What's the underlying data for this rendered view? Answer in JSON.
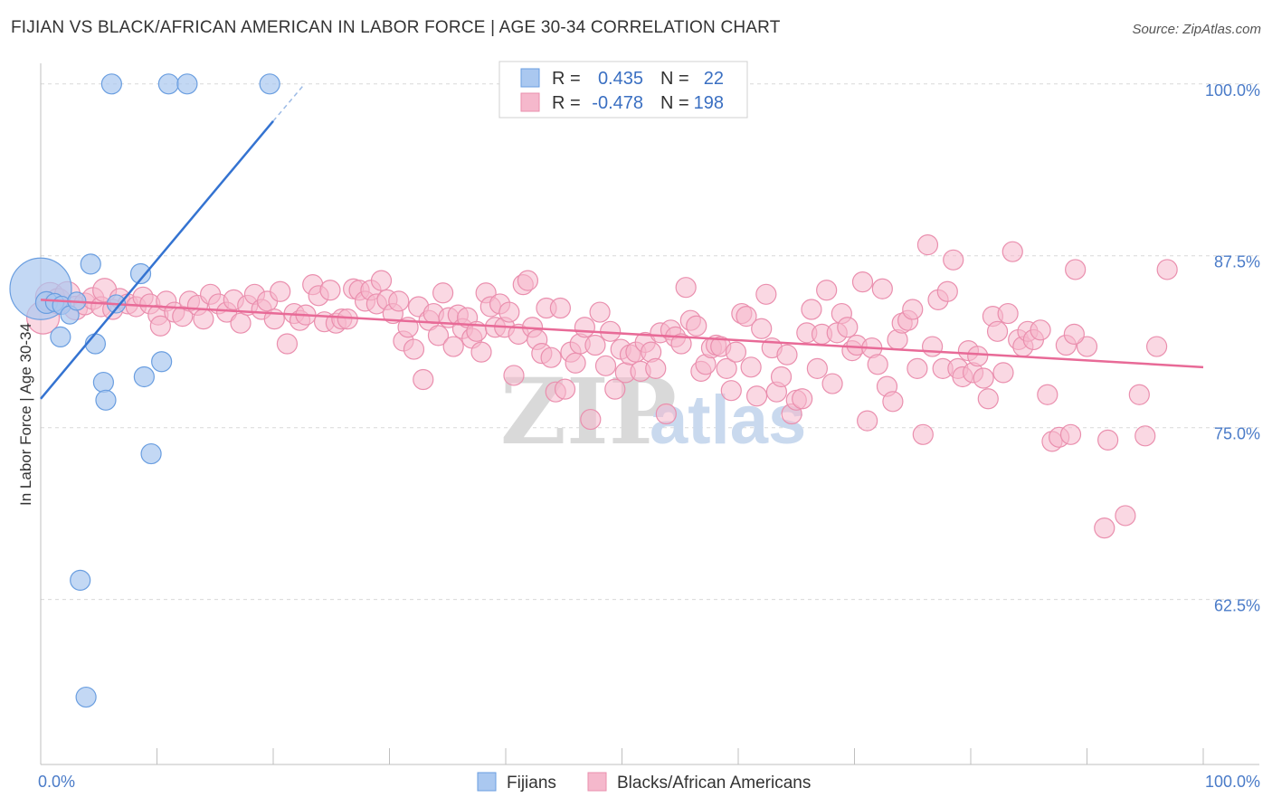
{
  "title": "FIJIAN VS BLACK/AFRICAN AMERICAN IN LABOR FORCE | AGE 30-34 CORRELATION CHART",
  "source": "Source: ZipAtlas.com",
  "watermark": {
    "zip": "ZIP",
    "atlas": "atlas"
  },
  "colors": {
    "fijian_fill": "#aac8f0",
    "fijian_stroke": "#6a9ee0",
    "fijian_line": "#3473d1",
    "black_fill": "#f5b8cc",
    "black_stroke": "#ea8fae",
    "black_line": "#e86a97",
    "grid": "#d9d9d9",
    "tick_text": "#4a7bc8"
  },
  "legend": {
    "rows": [
      {
        "r_label": "R =",
        "r_value": "0.435",
        "n_label": "N =",
        "n_value": "22"
      },
      {
        "r_label": "R =",
        "r_value": "-0.478",
        "n_label": "N =",
        "n_value": "198"
      }
    ]
  },
  "bottom_legend": [
    "Fijians",
    "Blacks/African Americans"
  ],
  "chart_data": {
    "type": "scatter",
    "title": "FIJIAN VS BLACK/AFRICAN AMERICAN IN LABOR FORCE | AGE 30-34 CORRELATION CHART",
    "xlabel": "",
    "ylabel": "In Labor Force | Age 30-34",
    "xlim": [
      0,
      100
    ],
    "ylim": [
      50.5,
      101.5
    ],
    "x_tick_labels": [
      "0.0%",
      "100.0%"
    ],
    "y_ticks": [
      100.0,
      87.5,
      75.0,
      62.5
    ],
    "y_tick_labels": [
      "100.0%",
      "87.5%",
      "75.0%",
      "62.5%"
    ],
    "grid": true,
    "legend_position": "top-center",
    "series": [
      {
        "name": "Fijians",
        "r": 0.435,
        "n": 22,
        "trend": {
          "x0": 0.0,
          "y0": 77.1,
          "x1": 20.0,
          "y1": 97.3,
          "dash_to_x": 22.7,
          "dash_to_y": 100.0
        },
        "points": [
          [
            0.0,
            85.1,
            34
          ],
          [
            0.5,
            84.1,
            12
          ],
          [
            1.2,
            84.1,
            10
          ],
          [
            1.8,
            83.9,
            10
          ],
          [
            2.5,
            83.2,
            10
          ],
          [
            1.7,
            81.6,
            11
          ],
          [
            4.7,
            81.1,
            11
          ],
          [
            4.3,
            86.9,
            11
          ],
          [
            8.6,
            86.2,
            11
          ],
          [
            5.4,
            78.3,
            11
          ],
          [
            5.6,
            77.0,
            11
          ],
          [
            8.9,
            78.7,
            11
          ],
          [
            10.4,
            79.8,
            11
          ],
          [
            9.5,
            73.1,
            11
          ],
          [
            3.4,
            63.9,
            11
          ],
          [
            3.9,
            55.4,
            11
          ],
          [
            6.1,
            100.0,
            11
          ],
          [
            11.0,
            100.0,
            11
          ],
          [
            12.6,
            100.0,
            11
          ],
          [
            19.7,
            100.0,
            11
          ],
          [
            3.1,
            84.2,
            10
          ],
          [
            6.5,
            84.0,
            10
          ]
        ]
      },
      {
        "name": "Blacks/African Americans",
        "r": -0.478,
        "n": 198,
        "trend": {
          "x0": 0.0,
          "y0": 84.3,
          "x1": 100.0,
          "y1": 79.4
        },
        "points": [
          [
            0.2,
            83.0,
            18
          ],
          [
            0.8,
            84.5,
            16
          ],
          [
            1.5,
            84.2,
            14
          ],
          [
            2.3,
            84.7,
            14
          ],
          [
            3.0,
            83.7,
            13
          ],
          [
            3.8,
            84.0,
            12
          ],
          [
            4.5,
            84.4,
            12
          ],
          [
            5.2,
            83.8,
            11
          ],
          [
            5.5,
            85.0,
            13
          ],
          [
            6.2,
            83.6,
            11
          ],
          [
            6.8,
            84.4,
            11
          ],
          [
            7.5,
            84.0,
            11
          ],
          [
            8.2,
            83.8,
            11
          ],
          [
            8.8,
            84.5,
            11
          ],
          [
            9.4,
            84.0,
            11
          ],
          [
            10.1,
            83.2,
            11
          ],
          [
            10.3,
            82.4,
            11
          ],
          [
            10.8,
            84.2,
            11
          ],
          [
            11.5,
            83.4,
            11
          ],
          [
            12.2,
            83.1,
            11
          ],
          [
            12.8,
            84.2,
            11
          ],
          [
            13.5,
            83.9,
            11
          ],
          [
            14.0,
            82.9,
            11
          ],
          [
            14.6,
            84.7,
            11
          ],
          [
            15.3,
            84.0,
            11
          ],
          [
            16.0,
            83.4,
            11
          ],
          [
            16.6,
            84.3,
            11
          ],
          [
            17.2,
            82.6,
            11
          ],
          [
            17.8,
            83.9,
            11
          ],
          [
            18.4,
            84.7,
            11
          ],
          [
            19.0,
            83.6,
            11
          ],
          [
            19.5,
            84.2,
            11
          ],
          [
            20.1,
            82.9,
            11
          ],
          [
            20.6,
            84.9,
            11
          ],
          [
            21.2,
            81.1,
            11
          ],
          [
            21.8,
            83.3,
            11
          ],
          [
            22.3,
            82.8,
            11
          ],
          [
            22.8,
            83.2,
            11
          ],
          [
            23.4,
            85.4,
            11
          ],
          [
            23.9,
            84.6,
            11
          ],
          [
            24.4,
            82.7,
            11
          ],
          [
            24.9,
            85.0,
            11
          ],
          [
            25.4,
            82.6,
            11
          ],
          [
            25.9,
            82.9,
            11
          ],
          [
            26.4,
            82.9,
            11
          ],
          [
            26.9,
            85.1,
            11
          ],
          [
            27.4,
            85.0,
            11
          ],
          [
            27.9,
            84.2,
            11
          ],
          [
            28.4,
            85.0,
            11
          ],
          [
            28.9,
            84.0,
            11
          ],
          [
            29.3,
            85.7,
            11
          ],
          [
            29.8,
            84.3,
            11
          ],
          [
            30.3,
            83.3,
            11
          ],
          [
            30.8,
            84.2,
            11
          ],
          [
            31.2,
            81.3,
            11
          ],
          [
            31.6,
            82.3,
            11
          ],
          [
            32.1,
            80.7,
            11
          ],
          [
            32.5,
            83.8,
            11
          ],
          [
            32.9,
            78.5,
            11
          ],
          [
            33.4,
            82.8,
            11
          ],
          [
            33.8,
            83.3,
            11
          ],
          [
            34.2,
            81.7,
            11
          ],
          [
            34.6,
            84.8,
            11
          ],
          [
            35.1,
            83.0,
            11
          ],
          [
            35.5,
            80.9,
            11
          ],
          [
            35.9,
            83.2,
            11
          ],
          [
            36.3,
            82.2,
            11
          ],
          [
            36.7,
            83.0,
            11
          ],
          [
            37.1,
            81.5,
            11
          ],
          [
            37.5,
            82.0,
            11
          ],
          [
            37.9,
            80.5,
            11
          ],
          [
            38.3,
            84.8,
            11
          ],
          [
            38.7,
            83.8,
            11
          ],
          [
            39.1,
            82.3,
            11
          ],
          [
            39.5,
            84.0,
            11
          ],
          [
            39.9,
            82.3,
            11
          ],
          [
            40.3,
            83.4,
            11
          ],
          [
            40.7,
            78.8,
            11
          ],
          [
            41.1,
            81.8,
            11
          ],
          [
            41.5,
            85.4,
            11
          ],
          [
            41.9,
            85.7,
            11
          ],
          [
            42.3,
            82.3,
            11
          ],
          [
            42.7,
            81.4,
            11
          ],
          [
            43.1,
            80.4,
            11
          ],
          [
            43.5,
            83.7,
            11
          ],
          [
            43.9,
            80.1,
            11
          ],
          [
            44.3,
            77.6,
            11
          ],
          [
            44.7,
            83.7,
            11
          ],
          [
            45.1,
            77.8,
            11
          ],
          [
            45.6,
            80.5,
            11
          ],
          [
            46.0,
            79.7,
            11
          ],
          [
            46.4,
            81.1,
            11
          ],
          [
            46.8,
            82.3,
            11
          ],
          [
            47.3,
            75.6,
            11
          ],
          [
            47.7,
            81.0,
            11
          ],
          [
            48.1,
            83.4,
            11
          ],
          [
            48.6,
            79.5,
            11
          ],
          [
            49.0,
            82.0,
            11
          ],
          [
            49.4,
            77.8,
            11
          ],
          [
            49.9,
            80.7,
            11
          ],
          [
            50.3,
            79.0,
            11
          ],
          [
            50.7,
            80.3,
            11
          ],
          [
            51.2,
            80.5,
            11
          ],
          [
            51.6,
            79.1,
            11
          ],
          [
            52.0,
            81.2,
            11
          ],
          [
            52.5,
            80.5,
            11
          ],
          [
            52.9,
            79.3,
            11
          ],
          [
            53.3,
            81.9,
            11
          ],
          [
            53.8,
            76.0,
            11
          ],
          [
            54.2,
            82.1,
            11
          ],
          [
            54.6,
            81.6,
            11
          ],
          [
            55.1,
            81.1,
            11
          ],
          [
            55.5,
            85.2,
            11
          ],
          [
            55.9,
            82.8,
            11
          ],
          [
            56.4,
            82.4,
            11
          ],
          [
            56.8,
            79.1,
            11
          ],
          [
            57.2,
            79.6,
            11
          ],
          [
            57.7,
            80.8,
            11
          ],
          [
            58.1,
            81.0,
            11
          ],
          [
            58.5,
            80.9,
            11
          ],
          [
            59.0,
            79.3,
            11
          ],
          [
            59.4,
            77.7,
            11
          ],
          [
            59.8,
            80.5,
            11
          ],
          [
            60.3,
            83.3,
            11
          ],
          [
            60.7,
            83.1,
            11
          ],
          [
            61.1,
            79.4,
            11
          ],
          [
            61.6,
            77.3,
            11
          ],
          [
            62.0,
            82.2,
            11
          ],
          [
            62.4,
            84.7,
            11
          ],
          [
            62.9,
            80.8,
            11
          ],
          [
            63.3,
            77.6,
            11
          ],
          [
            63.7,
            78.7,
            11
          ],
          [
            64.2,
            80.3,
            11
          ],
          [
            64.6,
            76.0,
            11
          ],
          [
            65.0,
            77.0,
            11
          ],
          [
            65.5,
            77.1,
            11
          ],
          [
            65.9,
            81.9,
            11
          ],
          [
            66.3,
            83.6,
            11
          ],
          [
            66.8,
            79.3,
            11
          ],
          [
            67.2,
            81.8,
            11
          ],
          [
            67.6,
            85.0,
            11
          ],
          [
            68.1,
            78.2,
            11
          ],
          [
            68.5,
            81.9,
            11
          ],
          [
            68.9,
            83.3,
            11
          ],
          [
            69.4,
            82.3,
            11
          ],
          [
            69.8,
            80.6,
            11
          ],
          [
            70.2,
            81.0,
            11
          ],
          [
            70.7,
            85.6,
            11
          ],
          [
            71.1,
            75.5,
            11
          ],
          [
            71.5,
            80.8,
            11
          ],
          [
            72.0,
            79.6,
            11
          ],
          [
            72.4,
            85.1,
            11
          ],
          [
            72.8,
            78.0,
            11
          ],
          [
            73.3,
            76.9,
            11
          ],
          [
            73.7,
            81.4,
            11
          ],
          [
            74.1,
            82.6,
            11
          ],
          [
            74.6,
            82.8,
            11
          ],
          [
            75.0,
            83.6,
            11
          ],
          [
            75.4,
            79.3,
            11
          ],
          [
            75.9,
            74.5,
            11
          ],
          [
            76.3,
            88.3,
            11
          ],
          [
            76.7,
            80.9,
            11
          ],
          [
            77.2,
            84.3,
            11
          ],
          [
            77.6,
            79.3,
            11
          ],
          [
            78.0,
            84.9,
            11
          ],
          [
            78.5,
            87.2,
            11
          ],
          [
            78.9,
            79.3,
            11
          ],
          [
            79.3,
            78.7,
            11
          ],
          [
            79.8,
            80.6,
            11
          ],
          [
            80.2,
            79.0,
            11
          ],
          [
            80.6,
            80.2,
            11
          ],
          [
            81.1,
            78.6,
            11
          ],
          [
            81.5,
            77.1,
            11
          ],
          [
            81.9,
            83.1,
            11
          ],
          [
            82.3,
            82.0,
            11
          ],
          [
            82.8,
            79.0,
            11
          ],
          [
            83.2,
            83.3,
            11
          ],
          [
            83.6,
            87.8,
            11
          ],
          [
            84.1,
            81.4,
            11
          ],
          [
            84.5,
            80.9,
            11
          ],
          [
            84.9,
            82.0,
            11
          ],
          [
            85.4,
            81.4,
            11
          ],
          [
            86.0,
            82.1,
            11
          ],
          [
            86.6,
            77.4,
            11
          ],
          [
            87.0,
            74.0,
            11
          ],
          [
            87.6,
            74.3,
            11
          ],
          [
            88.2,
            81.0,
            11
          ],
          [
            88.6,
            74.5,
            11
          ],
          [
            89.0,
            86.5,
            11
          ],
          [
            90.0,
            80.9,
            11
          ],
          [
            91.5,
            67.7,
            11
          ],
          [
            93.3,
            68.6,
            11
          ],
          [
            94.5,
            77.4,
            11
          ],
          [
            96.9,
            86.5,
            11
          ],
          [
            96.0,
            80.9,
            11
          ],
          [
            91.8,
            74.1,
            11
          ],
          [
            95.0,
            74.4,
            11
          ],
          [
            88.9,
            81.8,
            11
          ]
        ]
      }
    ]
  }
}
